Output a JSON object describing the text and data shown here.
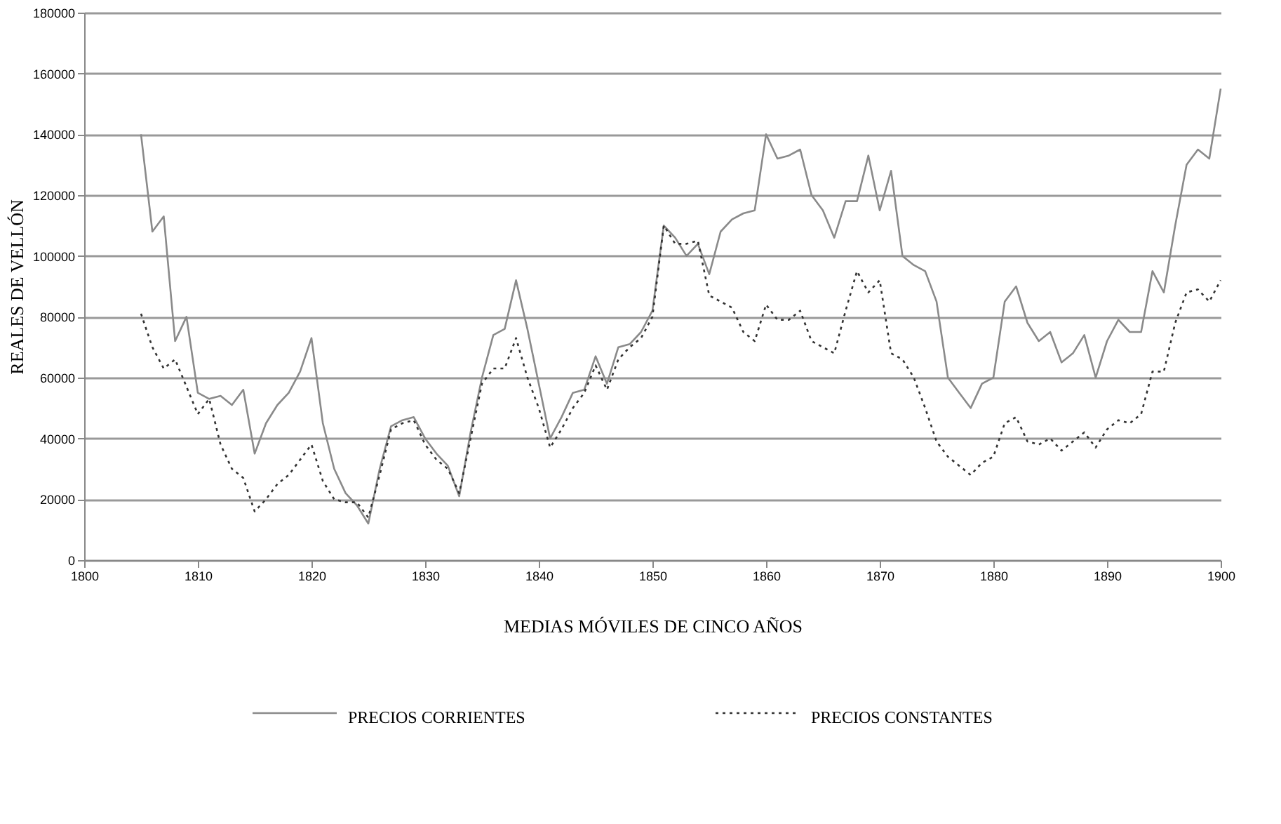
{
  "chart_data": {
    "type": "line",
    "xlabel": "MEDIAS MÓVILES DE CINCO AÑOS",
    "ylabel": "REALES DE VELLÓN",
    "x": [
      1805,
      1806,
      1807,
      1808,
      1809,
      1810,
      1811,
      1812,
      1813,
      1814,
      1815,
      1816,
      1817,
      1818,
      1819,
      1820,
      1821,
      1822,
      1823,
      1824,
      1825,
      1826,
      1827,
      1828,
      1829,
      1830,
      1831,
      1832,
      1833,
      1834,
      1835,
      1836,
      1837,
      1838,
      1839,
      1840,
      1841,
      1842,
      1843,
      1844,
      1845,
      1846,
      1847,
      1848,
      1849,
      1850,
      1851,
      1852,
      1853,
      1854,
      1855,
      1856,
      1857,
      1858,
      1859,
      1860,
      1861,
      1862,
      1863,
      1864,
      1865,
      1866,
      1867,
      1868,
      1869,
      1870,
      1871,
      1872,
      1873,
      1874,
      1875,
      1876,
      1877,
      1878,
      1879,
      1880,
      1881,
      1882,
      1883,
      1884,
      1885,
      1886,
      1887,
      1888,
      1889,
      1890,
      1891,
      1892,
      1893,
      1894,
      1895,
      1896,
      1897,
      1898,
      1899,
      1900
    ],
    "series": [
      {
        "name": "PRECIOS CORRIENTES",
        "color": "#8a8a8a",
        "line_style": "solid",
        "values": [
          140000,
          108000,
          113000,
          72000,
          80000,
          55000,
          53000,
          54000,
          51000,
          56000,
          35000,
          45000,
          51000,
          55000,
          62000,
          73000,
          45000,
          30000,
          22000,
          18000,
          12000,
          30000,
          44000,
          46000,
          47000,
          40000,
          35000,
          31000,
          21000,
          42000,
          60000,
          74000,
          76000,
          92000,
          76000,
          58000,
          40000,
          47000,
          55000,
          56000,
          67000,
          58000,
          70000,
          71000,
          75000,
          82000,
          110000,
          106000,
          100000,
          104000,
          94000,
          108000,
          112000,
          114000,
          115000,
          140000,
          132000,
          133000,
          135000,
          120000,
          115000,
          106000,
          118000,
          118000,
          133000,
          115000,
          128000,
          100000,
          97000,
          95000,
          85000,
          60000,
          55000,
          50000,
          58000,
          60000,
          85000,
          90000,
          78000,
          72000,
          75000,
          65000,
          68000,
          74000,
          60000,
          72000,
          79000,
          75000,
          75000,
          95000,
          88000,
          110000,
          130000,
          135000,
          132000,
          155000
        ]
      },
      {
        "name": "PRECIOS CONSTANTES",
        "color": "#333333",
        "line_style": "dotted",
        "values": [
          81000,
          70000,
          63000,
          66000,
          57000,
          48000,
          53000,
          38000,
          30000,
          27000,
          16000,
          20000,
          25000,
          28000,
          33000,
          38000,
          26000,
          20000,
          19000,
          19000,
          14000,
          28000,
          43000,
          45000,
          46000,
          38000,
          33000,
          30000,
          22000,
          40000,
          58000,
          63000,
          63000,
          73000,
          60000,
          50000,
          37000,
          43000,
          50000,
          55000,
          64000,
          56000,
          66000,
          70000,
          73000,
          80000,
          110000,
          104000,
          104000,
          105000,
          87000,
          85000,
          83000,
          75000,
          72000,
          84000,
          79000,
          79000,
          82000,
          72000,
          70000,
          68000,
          82000,
          95000,
          88000,
          92000,
          68000,
          66000,
          60000,
          50000,
          39000,
          34000,
          31000,
          28000,
          32000,
          34000,
          45000,
          47000,
          39000,
          38000,
          40000,
          36000,
          39000,
          42000,
          37000,
          43000,
          46000,
          45000,
          48000,
          62000,
          62000,
          78000,
          88000,
          89000,
          85000,
          92000
        ]
      }
    ],
    "xlim": [
      1800,
      1900
    ],
    "xticks": [
      1800,
      1810,
      1820,
      1830,
      1840,
      1850,
      1860,
      1870,
      1880,
      1890,
      1900
    ],
    "ylim": [
      0,
      180000
    ],
    "yticks": [
      0,
      20000,
      40000,
      60000,
      80000,
      100000,
      120000,
      140000,
      160000,
      180000
    ],
    "grid": "y",
    "legend": "bottom",
    "marker": "none"
  }
}
